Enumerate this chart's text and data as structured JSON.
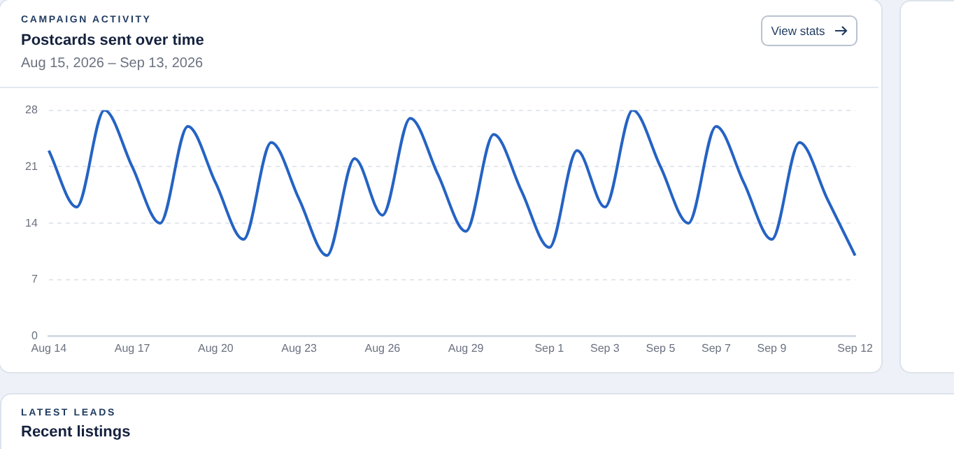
{
  "chart_data": {
    "type": "line",
    "title": "Postcards sent over time",
    "subtitle": "Aug 15, 2026 – Sep 13, 2026",
    "annotations": [
      "CAMPAIGN ACTIVITY",
      "View stats",
      "LATEST LEADS",
      "Recent listings"
    ],
    "categories": [
      "Aug 14",
      null,
      null,
      "Aug 17",
      null,
      null,
      "Aug 20",
      null,
      null,
      "Aug 23",
      null,
      null,
      "Aug 26",
      null,
      null,
      "Aug 29",
      null,
      null,
      "Sep 1",
      null,
      "Sep 3",
      null,
      "Sep 5",
      null,
      "Sep 7",
      null,
      "Sep 9",
      null,
      null,
      "Sep 12"
    ],
    "series": [
      {
        "color": "#2563c4",
        "values": [
          23,
          16,
          28,
          21,
          14,
          26,
          19,
          12,
          24,
          17,
          10,
          22,
          15,
          27,
          20,
          13,
          25,
          18,
          11,
          23,
          16,
          28,
          21,
          14,
          26,
          19,
          12,
          24,
          17,
          10
        ]
      }
    ],
    "ylim": [
      0,
      28
    ],
    "yticks": [
      0,
      7,
      14,
      21,
      28
    ],
    "grid": "y",
    "legend": false,
    "marker": "none",
    "line_style": "solid"
  }
}
